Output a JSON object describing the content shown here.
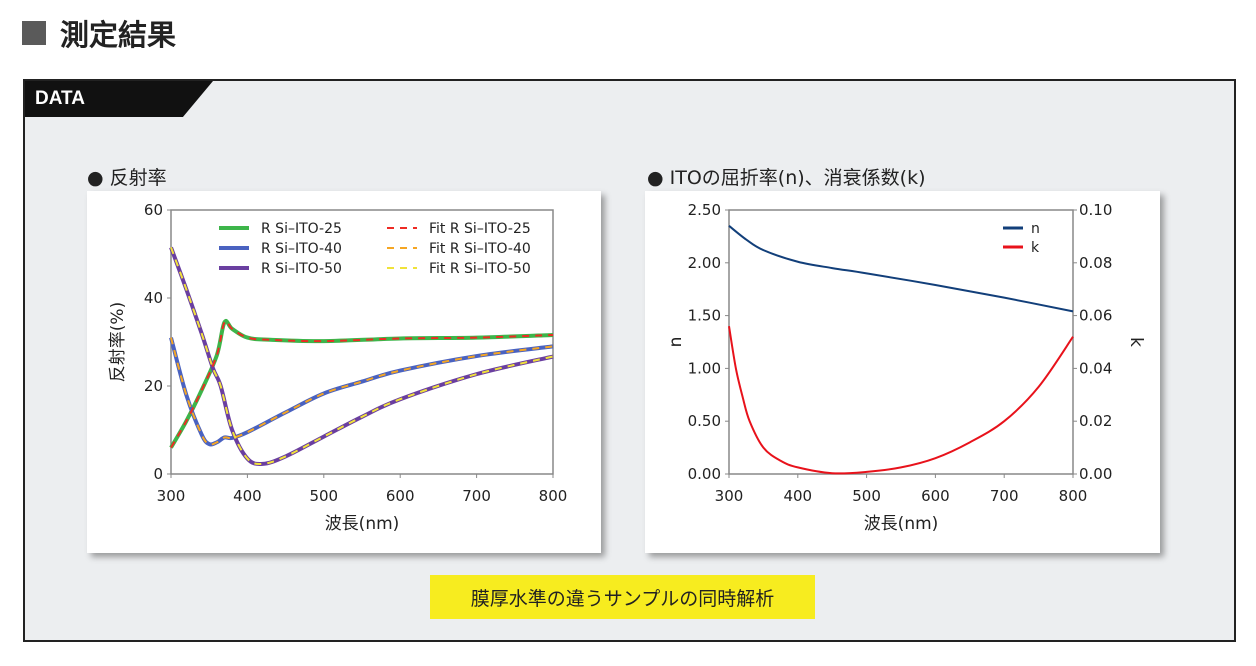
{
  "header": {
    "title": "測定結果",
    "icon": "square-icon"
  },
  "tab": {
    "label": "DATA"
  },
  "note": "膜厚水準の違うサンプルの同時解析",
  "chart_data": [
    {
      "type": "line",
      "title": "● 反射率",
      "xlabel": "波長(nm)",
      "ylabel": "反射率(%)",
      "xlim": [
        300,
        800
      ],
      "ylim": [
        0,
        60
      ],
      "xticks": [
        300,
        400,
        500,
        600,
        700,
        800
      ],
      "yticks": [
        0,
        20,
        40,
        60
      ],
      "grid": false,
      "legend": "top",
      "series": [
        {
          "name": "R Si–ITO-25",
          "color": "#3db54a",
          "style": "solid",
          "x": [
            300,
            320,
            340,
            360,
            370,
            380,
            400,
            430,
            500,
            600,
            700,
            800
          ],
          "y": [
            6,
            12,
            19,
            27,
            34.5,
            33,
            31,
            30.5,
            30.2,
            30.8,
            31,
            31.6
          ]
        },
        {
          "name": "R Si–ITO-40",
          "color": "#4a62c0",
          "style": "solid",
          "x": [
            300,
            320,
            340,
            350,
            360,
            370,
            380,
            400,
            450,
            500,
            550,
            600,
            700,
            800
          ],
          "y": [
            31,
            18,
            9,
            6.8,
            7.2,
            8.3,
            8.2,
            9.5,
            14,
            18.3,
            21,
            23.5,
            26.8,
            29
          ]
        },
        {
          "name": "R Si–ITO-50",
          "color": "#6a3fa0",
          "style": "solid",
          "x": [
            300,
            320,
            340,
            355,
            365,
            380,
            400,
            420,
            450,
            500,
            550,
            600,
            700,
            800
          ],
          "y": [
            51.5,
            42,
            32,
            24,
            20,
            10,
            3.5,
            2.3,
            4,
            8.5,
            13,
            17,
            22.7,
            26.7
          ]
        },
        {
          "name": "Fit R Si–ITO-25",
          "color": "#ee2b24",
          "style": "dashed",
          "x": [
            300,
            320,
            340,
            360,
            370,
            380,
            400,
            430,
            500,
            600,
            700,
            800
          ],
          "y": [
            6,
            12,
            19,
            27,
            34.5,
            33,
            31,
            30.5,
            30.2,
            30.8,
            31,
            31.6
          ]
        },
        {
          "name": "Fit R Si–ITO-40",
          "color": "#f5a623",
          "style": "dashed",
          "x": [
            300,
            320,
            340,
            350,
            360,
            370,
            380,
            400,
            450,
            500,
            550,
            600,
            700,
            800
          ],
          "y": [
            31,
            18,
            9,
            6.8,
            7.2,
            8.3,
            8.2,
            9.5,
            14,
            18.3,
            21,
            23.5,
            26.8,
            29
          ]
        },
        {
          "name": "Fit R Si–ITO-50",
          "color": "#f0e23a",
          "style": "dashed",
          "x": [
            300,
            320,
            340,
            355,
            365,
            380,
            400,
            420,
            450,
            500,
            550,
            600,
            700,
            800
          ],
          "y": [
            51.5,
            42,
            32,
            24,
            20,
            10,
            3.5,
            2.3,
            4,
            8.5,
            13,
            17,
            22.7,
            26.7
          ]
        }
      ]
    },
    {
      "type": "line",
      "title": "● ITOの屈折率(n)、消衰係数(k)",
      "xlabel": "波長(nm)",
      "ylabel": "n",
      "y2label": "k",
      "xlim": [
        300,
        800
      ],
      "ylim": [
        0,
        2.5
      ],
      "y2lim": [
        0,
        0.1
      ],
      "xticks": [
        300,
        400,
        500,
        600,
        700,
        800
      ],
      "yticks": [
        "0.00",
        "0.50",
        "1.00",
        "1.50",
        "2.00",
        "2.50"
      ],
      "y2ticks": [
        "0.00",
        "0.02",
        "0.04",
        "0.06",
        "0.08",
        "0.10"
      ],
      "grid": false,
      "legend": "top-right",
      "series": [
        {
          "name": "n",
          "color": "#123f7a",
          "axis": "left",
          "x": [
            300,
            325,
            350,
            400,
            450,
            500,
            600,
            700,
            800
          ],
          "y": [
            2.35,
            2.22,
            2.12,
            2.01,
            1.95,
            1.9,
            1.79,
            1.67,
            1.54
          ]
        },
        {
          "name": "k",
          "color": "#e8121b",
          "axis": "right",
          "x": [
            300,
            310,
            320,
            330,
            350,
            375,
            400,
            450,
            500,
            550,
            600,
            650,
            700,
            750,
            800
          ],
          "y": [
            0.056,
            0.04,
            0.029,
            0.02,
            0.01,
            0.005,
            0.0025,
            0.0003,
            0.0008,
            0.0025,
            0.006,
            0.012,
            0.02,
            0.033,
            0.052
          ]
        }
      ]
    }
  ]
}
